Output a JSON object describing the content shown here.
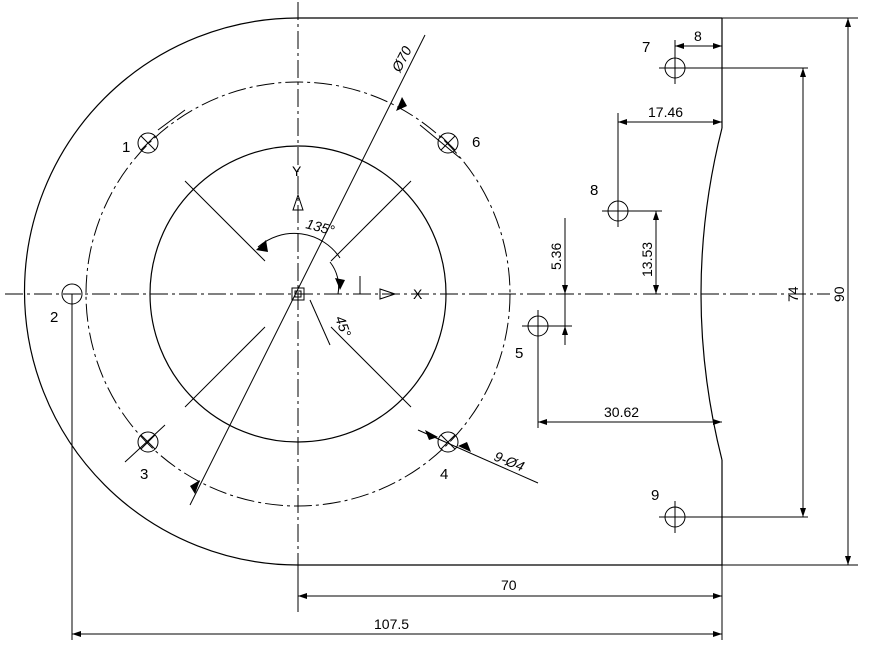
{
  "dimensions": {
    "outer_diameter": "Ø70",
    "angle_135": "135°",
    "angle_45": "45°",
    "hole_callout": "9-Ø4",
    "dim_8": "8",
    "dim_17_46": "17.46",
    "dim_5_36": "5.36",
    "dim_13_53": "13.53",
    "dim_30_62": "30.62",
    "dim_74": "74",
    "dim_90": "90",
    "dim_70": "70",
    "dim_107_5": "107.5"
  },
  "axes": {
    "y": "Y",
    "x": "X"
  },
  "holes": [
    {
      "id": "1",
      "label": "1"
    },
    {
      "id": "2",
      "label": "2"
    },
    {
      "id": "3",
      "label": "3"
    },
    {
      "id": "4",
      "label": "4"
    },
    {
      "id": "5",
      "label": "5"
    },
    {
      "id": "6",
      "label": "6"
    },
    {
      "id": "7",
      "label": "7"
    },
    {
      "id": "8",
      "label": "8"
    },
    {
      "id": "9",
      "label": "9"
    }
  ]
}
